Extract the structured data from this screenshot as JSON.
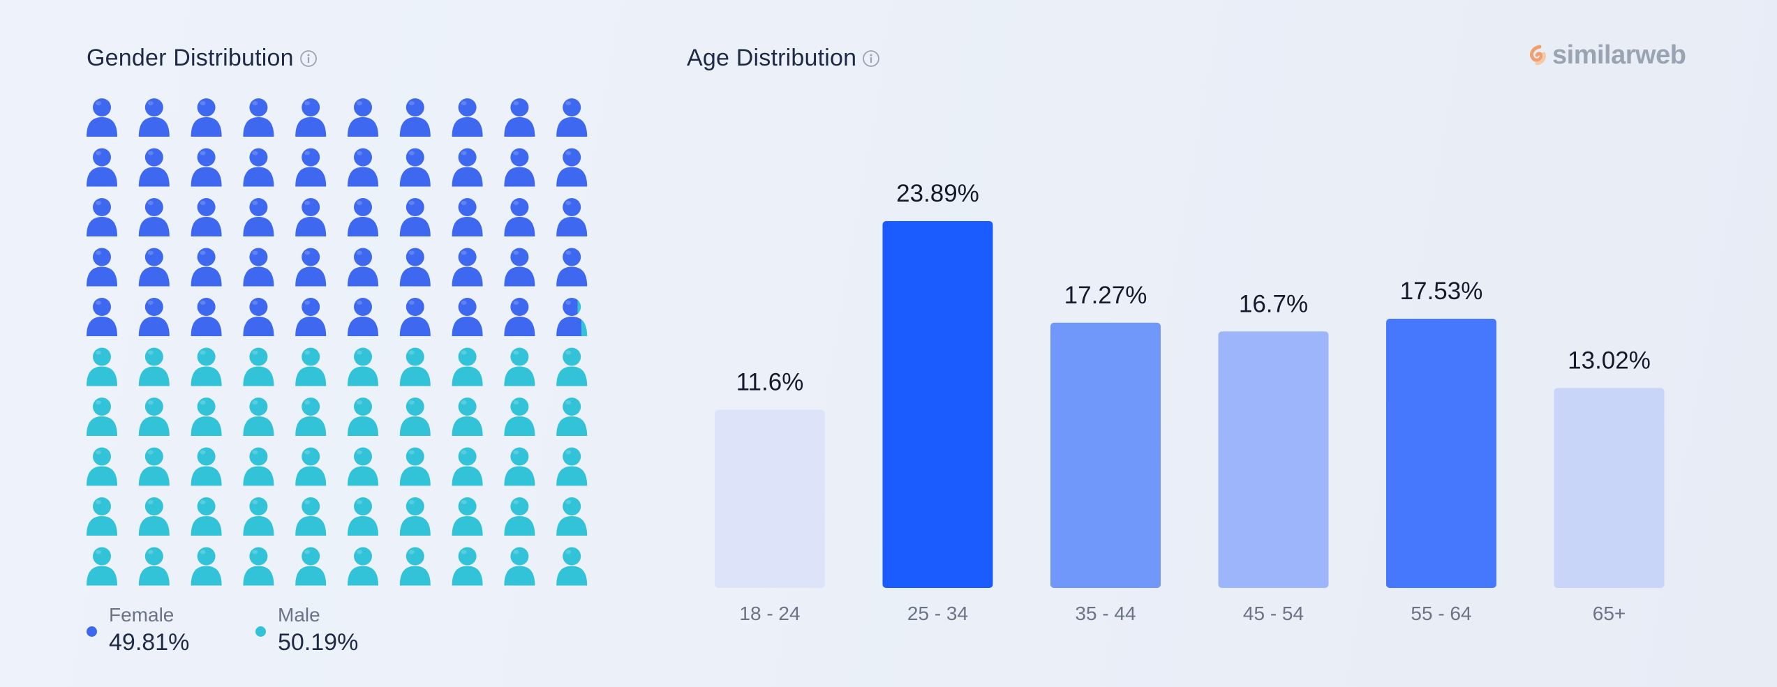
{
  "brand": {
    "name": "similarweb",
    "icon": "similarweb-logo-icon"
  },
  "gender": {
    "title": "Gender Distribution",
    "info_icon": "info-icon",
    "legend": [
      {
        "label": "Female",
        "value": "49.81%",
        "color": "#3d68ef"
      },
      {
        "label": "Male",
        "value": "50.19%",
        "color": "#33c3d8"
      }
    ],
    "grid": {
      "columns": 10,
      "rows": 10,
      "female_share": 49.81
    }
  },
  "age": {
    "title": "Age Distribution",
    "info_icon": "info-icon"
  },
  "chart_data": [
    {
      "type": "waffle",
      "title": "Gender Distribution",
      "categories": [
        "Female",
        "Male"
      ],
      "values": [
        49.81,
        50.19
      ],
      "unit": "%",
      "colors": [
        "#3d68ef",
        "#33c3d8"
      ]
    },
    {
      "type": "bar",
      "title": "Age Distribution",
      "categories": [
        "18 - 24",
        "25 - 34",
        "35 - 44",
        "45 - 54",
        "55 - 64",
        "65+"
      ],
      "values": [
        11.6,
        23.89,
        17.27,
        16.7,
        17.53,
        13.02
      ],
      "labels": [
        "11.6%",
        "23.89%",
        "17.27%",
        "16.7%",
        "17.53%",
        "13.02%"
      ],
      "colors": [
        "#dde3f8",
        "#1a5cff",
        "#7097fa",
        "#9db6fb",
        "#4578fc",
        "#c8d4f8"
      ],
      "ylim": [
        0,
        23.89
      ],
      "grid": false,
      "legend": "none"
    }
  ]
}
